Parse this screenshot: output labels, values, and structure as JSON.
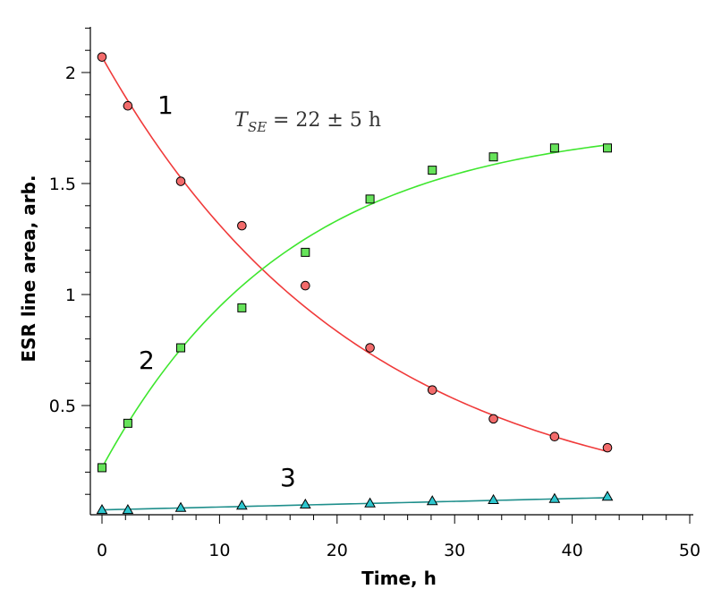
{
  "chart_data": {
    "type": "scatter",
    "title": "",
    "xlabel": "Time, h",
    "ylabel": "ESR line area, arb.",
    "xlim": [
      -1,
      50
    ],
    "ylim": [
      0.0,
      2.2
    ],
    "x_ticks": [
      0,
      10,
      20,
      30,
      40,
      50
    ],
    "y_ticks": [
      0.5,
      1,
      1.5,
      2
    ],
    "x_tick_labels": [
      "0",
      "10",
      "20",
      "30",
      "40",
      "50"
    ],
    "y_tick_labels": [
      "0.5",
      "1",
      "1.5",
      "2"
    ],
    "annotation": {
      "text_T": "T",
      "text_sub": "SE",
      "text_rest": "= 22 ± 5 h"
    },
    "series": [
      {
        "name": "1",
        "label": "1",
        "marker": "circle",
        "fill": "#f26b6b",
        "line_color": "#f03a3a",
        "x": [
          0,
          2.2,
          6.7,
          11.9,
          17.3,
          22.8,
          28.1,
          33.3,
          38.5,
          43.0
        ],
        "y": [
          2.07,
          1.85,
          1.51,
          1.31,
          1.04,
          0.76,
          0.57,
          0.44,
          0.36,
          0.31
        ],
        "fit": {
          "kind": "exp_decay",
          "A": 2.07,
          "tau": 22,
          "offset": 0.0,
          "x_max": 43.0
        }
      },
      {
        "name": "2",
        "label": "2",
        "marker": "square",
        "fill": "#66e35a",
        "line_color": "#3ee62e",
        "x": [
          0,
          2.2,
          6.7,
          11.9,
          17.3,
          22.8,
          28.1,
          33.3,
          38.5,
          43.0
        ],
        "y": [
          0.22,
          0.42,
          0.76,
          0.94,
          1.19,
          1.43,
          1.56,
          1.62,
          1.66,
          1.66
        ],
        "fit": {
          "kind": "exp_rise",
          "A": 1.78,
          "tau": 16,
          "offset": 0.22,
          "x_max": 43.0
        }
      },
      {
        "name": "3",
        "label": "3",
        "marker": "triangle",
        "fill": "#2ec7cf",
        "line_color": "#1f8f8c",
        "x": [
          0,
          2.2,
          6.7,
          11.9,
          17.3,
          22.8,
          28.1,
          33.3,
          38.5,
          43.0
        ],
        "y": [
          0.03,
          0.03,
          0.04,
          0.05,
          0.055,
          0.06,
          0.07,
          0.075,
          0.08,
          0.09
        ],
        "fit": {
          "kind": "linear",
          "y0": 0.03,
          "y1": 0.085,
          "x_max": 43.0
        }
      }
    ]
  }
}
